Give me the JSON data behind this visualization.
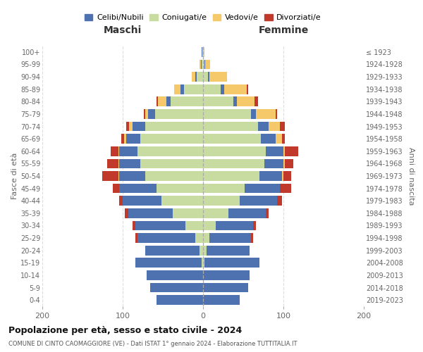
{
  "age_groups": [
    "0-4",
    "5-9",
    "10-14",
    "15-19",
    "20-24",
    "25-29",
    "30-34",
    "35-39",
    "40-44",
    "45-49",
    "50-54",
    "55-59",
    "60-64",
    "65-69",
    "70-74",
    "75-79",
    "80-84",
    "85-89",
    "90-94",
    "95-99",
    "100+"
  ],
  "birth_years": [
    "2019-2023",
    "2014-2018",
    "2009-2013",
    "2004-2008",
    "1999-2003",
    "1994-1998",
    "1989-1993",
    "1984-1988",
    "1979-1983",
    "1974-1978",
    "1969-1973",
    "1964-1968",
    "1959-1963",
    "1954-1958",
    "1949-1953",
    "1944-1948",
    "1939-1943",
    "1934-1938",
    "1929-1933",
    "1924-1928",
    "≤ 1923"
  ],
  "male_celibi": [
    58,
    66,
    70,
    82,
    68,
    72,
    62,
    55,
    48,
    46,
    32,
    26,
    22,
    18,
    16,
    8,
    6,
    4,
    2,
    1,
    1
  ],
  "male_coniugati": [
    0,
    0,
    0,
    2,
    4,
    10,
    22,
    38,
    52,
    58,
    72,
    78,
    82,
    78,
    72,
    60,
    40,
    24,
    8,
    2,
    1
  ],
  "male_vedovi": [
    0,
    0,
    0,
    0,
    0,
    0,
    0,
    0,
    0,
    0,
    1,
    1,
    1,
    2,
    4,
    4,
    10,
    8,
    4,
    1,
    0
  ],
  "male_divorziati": [
    0,
    0,
    0,
    0,
    0,
    2,
    4,
    4,
    4,
    8,
    20,
    14,
    10,
    4,
    4,
    2,
    2,
    0,
    0,
    0,
    0
  ],
  "female_celibi": [
    46,
    56,
    58,
    68,
    54,
    52,
    46,
    46,
    46,
    44,
    28,
    24,
    22,
    18,
    14,
    6,
    4,
    4,
    2,
    1,
    0
  ],
  "female_coniugati": [
    0,
    0,
    0,
    2,
    4,
    8,
    16,
    32,
    46,
    52,
    70,
    76,
    78,
    72,
    68,
    60,
    38,
    22,
    6,
    2,
    1
  ],
  "female_vedovi": [
    0,
    0,
    0,
    0,
    0,
    0,
    0,
    0,
    0,
    0,
    2,
    2,
    2,
    8,
    14,
    24,
    22,
    28,
    22,
    6,
    1
  ],
  "female_divorziati": [
    0,
    0,
    0,
    0,
    0,
    2,
    4,
    4,
    6,
    14,
    10,
    10,
    16,
    4,
    6,
    2,
    4,
    2,
    0,
    0,
    0
  ],
  "colors": {
    "celibi": "#4e72b0",
    "coniugati": "#c8dba0",
    "vedovi": "#f5c869",
    "divorziati": "#c0392b"
  },
  "title": "Popolazione per età, sesso e stato civile - 2024",
  "subtitle": "COMUNE DI CINTO CAOMAGGIORE (VE) - Dati ISTAT 1° gennaio 2024 - Elaborazione TUTTITALIA.IT",
  "xlabel_left": "Maschi",
  "xlabel_right": "Femmine",
  "ylabel_left": "Fasce di età",
  "ylabel_right": "Anni di nascita",
  "xlim": 200,
  "legend_labels": [
    "Celibi/Nubili",
    "Coniugati/e",
    "Vedovi/e",
    "Divorziati/e"
  ],
  "background_color": "#ffffff",
  "grid_color": "#dddddd",
  "tick_color": "#666666"
}
